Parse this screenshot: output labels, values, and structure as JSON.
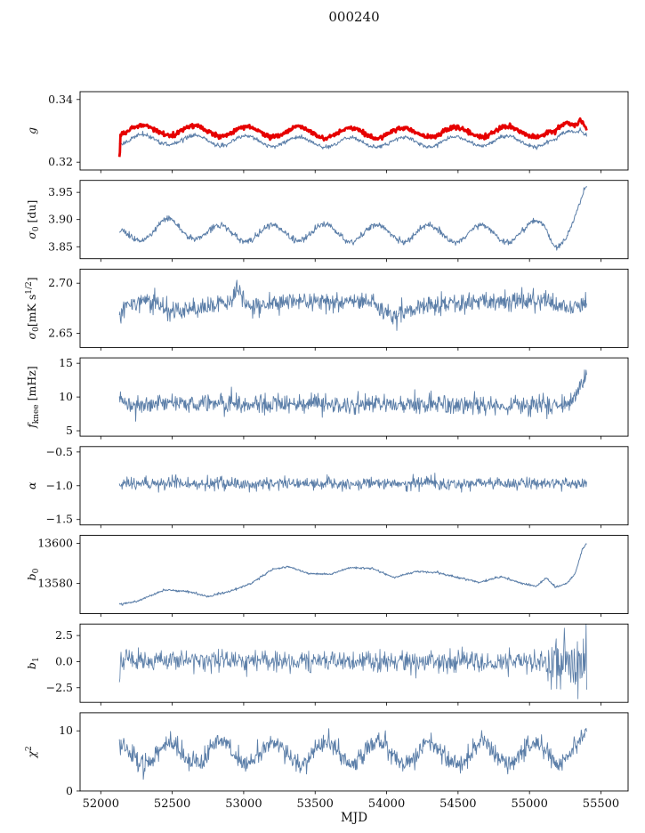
{
  "title": "000240",
  "xlabel": "MJD",
  "colors": {
    "line": "#5b7ea8",
    "red": "#e60000",
    "axis": "#000000",
    "text": "#111111"
  },
  "x_axis": {
    "min": 51855,
    "max": 55690,
    "data_range": [
      52130,
      55400
    ],
    "ticks": [
      {
        "v": 52000,
        "label": "52000"
      },
      {
        "v": 52500,
        "label": "52500"
      },
      {
        "v": 53000,
        "label": "53000"
      },
      {
        "v": 53500,
        "label": "53500"
      },
      {
        "v": 54000,
        "label": "54000"
      },
      {
        "v": 54500,
        "label": "54500"
      },
      {
        "v": 55000,
        "label": "55000"
      },
      {
        "v": 55500,
        "label": "55500"
      }
    ],
    "label": "MJD"
  },
  "chart_data": [
    {
      "type": "line",
      "name": "g",
      "ylabel_parts": [
        {
          "t": "g",
          "i": true
        }
      ],
      "ylim": [
        0.3175,
        0.3425
      ],
      "yticks": [
        {
          "v": 0.32,
          "label": "0.32"
        },
        {
          "v": 0.34,
          "label": "0.34"
        }
      ],
      "series": [
        {
          "name": "g-fit",
          "color_key": "line",
          "width": 1.0,
          "seed": 11,
          "noise": 0.00032,
          "seasonal": {
            "amp": 0.0016,
            "period": 365,
            "peak": 52290
          },
          "control": [
            [
              52130,
              0.3268
            ],
            [
              52300,
              0.3272
            ],
            [
              53000,
              0.3268
            ],
            [
              53800,
              0.3262
            ],
            [
              54500,
              0.3266
            ],
            [
              55000,
              0.3268
            ],
            [
              55120,
              0.3262
            ],
            [
              55180,
              0.3258
            ],
            [
              55260,
              0.3288
            ],
            [
              55320,
              0.33
            ],
            [
              55360,
              0.3318
            ],
            [
              55400,
              0.33
            ]
          ]
        },
        {
          "name": "g-measured",
          "color_key": "red",
          "width": 2.8,
          "seed": 7,
          "noise": 0.00035,
          "seasonal": {
            "amp": 0.0016,
            "period": 365,
            "peak": 52290
          },
          "control": [
            [
              52126,
              0.33
            ],
            [
              52131,
              0.3212
            ],
            [
              52137,
              0.3302
            ],
            [
              52300,
              0.3302
            ],
            [
              53000,
              0.3298
            ],
            [
              53800,
              0.3292
            ],
            [
              54500,
              0.3296
            ],
            [
              55000,
              0.3298
            ],
            [
              55120,
              0.329
            ],
            [
              55180,
              0.3286
            ],
            [
              55260,
              0.3316
            ],
            [
              55320,
              0.3322
            ],
            [
              55355,
              0.3348
            ],
            [
              55380,
              0.3338
            ],
            [
              55400,
              0.3318
            ]
          ]
        }
      ]
    },
    {
      "type": "line",
      "name": "sigma0_du",
      "ylabel_parts": [
        {
          "t": "σ",
          "i": true
        },
        {
          "t": "0",
          "sub": true
        },
        {
          "t": " [du]"
        }
      ],
      "ylim": [
        3.828,
        3.972
      ],
      "yticks": [
        {
          "v": 3.85,
          "label": "3.85"
        },
        {
          "v": 3.9,
          "label": "3.90"
        },
        {
          "v": 3.95,
          "label": "3.95"
        }
      ],
      "series": [
        {
          "name": "sigma0-du",
          "color_key": "line",
          "width": 1.0,
          "seed": 21,
          "noise": 0.0028,
          "seasonal": {
            "amp": 0.0155,
            "period": 365,
            "peak": 52470
          },
          "control": [
            [
              52130,
              3.868
            ],
            [
              52450,
              3.886
            ],
            [
              52800,
              3.874
            ],
            [
              53500,
              3.876
            ],
            [
              54300,
              3.874
            ],
            [
              54900,
              3.874
            ],
            [
              55100,
              3.886
            ],
            [
              55180,
              3.862
            ],
            [
              55260,
              3.876
            ],
            [
              55330,
              3.905
            ],
            [
              55400,
              3.948
            ]
          ]
        }
      ]
    },
    {
      "type": "line",
      "name": "sigma0_mks",
      "ylabel_parts": [
        {
          "t": "σ",
          "i": true
        },
        {
          "t": "0",
          "sub": true
        },
        {
          "t": "[mK s"
        },
        {
          "t": "1/2",
          "sup": true
        },
        {
          "t": "]"
        }
      ],
      "ylim": [
        2.636,
        2.714
      ],
      "yticks": [
        {
          "v": 2.65,
          "label": "2.65"
        },
        {
          "v": 2.7,
          "label": "2.70"
        }
      ],
      "series": [
        {
          "name": "sigma0-mks",
          "color_key": "line",
          "width": 0.9,
          "seed": 31,
          "noise": 0.0048,
          "control": [
            [
              52130,
              2.666
            ],
            [
              52180,
              2.678
            ],
            [
              52350,
              2.684
            ],
            [
              52480,
              2.672
            ],
            [
              52700,
              2.676
            ],
            [
              52900,
              2.68
            ],
            [
              52950,
              2.694
            ],
            [
              53050,
              2.676
            ],
            [
              53300,
              2.682
            ],
            [
              53600,
              2.682
            ],
            [
              53900,
              2.68
            ],
            [
              54050,
              2.668
            ],
            [
              54300,
              2.678
            ],
            [
              54600,
              2.682
            ],
            [
              54900,
              2.682
            ],
            [
              55100,
              2.684
            ],
            [
              55250,
              2.676
            ],
            [
              55400,
              2.678
            ]
          ]
        }
      ]
    },
    {
      "type": "line",
      "name": "fknee",
      "ylabel_parts": [
        {
          "t": "f",
          "i": true
        },
        {
          "t": "knee",
          "sub": true
        },
        {
          "t": " [mHz]"
        }
      ],
      "ylim": [
        4.2,
        15.8
      ],
      "yticks": [
        {
          "v": 5,
          "label": "5"
        },
        {
          "v": 10,
          "label": "10"
        },
        {
          "v": 15,
          "label": "15"
        }
      ],
      "series": [
        {
          "name": "fknee",
          "color_key": "line",
          "width": 0.9,
          "seed": 41,
          "noise": 0.72,
          "seasonal": {
            "amp": 0.15,
            "period": 365,
            "peak": 52470
          },
          "control": [
            [
              52130,
              9.1
            ],
            [
              53000,
              9.0
            ],
            [
              54000,
              8.9
            ],
            [
              55200,
              8.8
            ],
            [
              55300,
              9.3
            ],
            [
              55360,
              11.5
            ],
            [
              55400,
              13.2
            ]
          ]
        }
      ]
    },
    {
      "type": "line",
      "name": "alpha",
      "ylabel_parts": [
        {
          "t": "α",
          "i": true
        }
      ],
      "ylim": [
        -1.58,
        -0.42
      ],
      "yticks": [
        {
          "v": -1.5,
          "label": "−1.5"
        },
        {
          "v": -1.0,
          "label": "−1.0"
        },
        {
          "v": -0.5,
          "label": "−0.5"
        }
      ],
      "series": [
        {
          "name": "alpha",
          "color_key": "line",
          "width": 0.9,
          "seed": 51,
          "noise": 0.045,
          "seasonal": {
            "amp": 0.008,
            "period": 365,
            "peak": 52470
          },
          "control": [
            [
              52130,
              -0.968
            ],
            [
              55400,
              -0.968
            ]
          ]
        }
      ]
    },
    {
      "type": "line",
      "name": "b0",
      "ylabel_parts": [
        {
          "t": "b",
          "i": true
        },
        {
          "t": "0",
          "sub": true
        }
      ],
      "ylim": [
        13565,
        13604
      ],
      "yticks": [
        {
          "v": 13580,
          "label": "13580"
        },
        {
          "v": 13600,
          "label": "13600"
        }
      ],
      "series": [
        {
          "name": "b0",
          "color_key": "line",
          "width": 1.0,
          "seed": 61,
          "noise": 0.28,
          "control": [
            [
              52130,
              13569.5
            ],
            [
              52250,
              13571
            ],
            [
              52450,
              13577
            ],
            [
              52600,
              13576
            ],
            [
              52750,
              13573.5
            ],
            [
              52900,
              13576
            ],
            [
              53050,
              13580
            ],
            [
              53200,
              13587
            ],
            [
              53320,
              13588.5
            ],
            [
              53450,
              13585
            ],
            [
              53600,
              13584.5
            ],
            [
              53750,
              13588
            ],
            [
              53900,
              13587.5
            ],
            [
              54050,
              13583
            ],
            [
              54200,
              13586
            ],
            [
              54350,
              13585.5
            ],
            [
              54500,
              13583
            ],
            [
              54650,
              13580.5
            ],
            [
              54800,
              13583.5
            ],
            [
              54950,
              13580
            ],
            [
              55050,
              13578.5
            ],
            [
              55120,
              13583
            ],
            [
              55180,
              13578
            ],
            [
              55260,
              13580
            ],
            [
              55320,
              13585
            ],
            [
              55370,
              13597
            ],
            [
              55400,
              13600
            ]
          ]
        }
      ]
    },
    {
      "type": "line",
      "name": "b1",
      "ylabel_parts": [
        {
          "t": "b",
          "i": true
        },
        {
          "t": "1",
          "sub": true
        }
      ],
      "ylim": [
        -3.9,
        3.6
      ],
      "yticks": [
        {
          "v": -2.5,
          "label": "−2.5"
        },
        {
          "v": 0,
          "label": "0.0"
        },
        {
          "v": 2.5,
          "label": "2.5"
        }
      ],
      "series": [
        {
          "name": "b1",
          "color_key": "line",
          "width": 0.8,
          "seed": 71,
          "noise": 0.5,
          "end_noise": {
            "from": 55120,
            "factor": 2.6
          },
          "control": [
            [
              52127,
              -2.9
            ],
            [
              52140,
              0.1
            ],
            [
              55400,
              0
            ]
          ]
        }
      ]
    },
    {
      "type": "line",
      "name": "chi2",
      "ylabel_parts": [
        {
          "t": "χ",
          "i": true
        },
        {
          "t": "2",
          "sup": true
        }
      ],
      "ylim": [
        0,
        13
      ],
      "yticks": [
        {
          "v": 0,
          "label": "0"
        },
        {
          "v": 10,
          "label": "10"
        }
      ],
      "series": [
        {
          "name": "chi2",
          "color_key": "line",
          "width": 0.9,
          "seed": 81,
          "noise": 0.85,
          "seasonal": {
            "amp": 1.7,
            "period": 365,
            "peak": 52480
          },
          "clamp": [
            0.8,
            12.6
          ],
          "control": [
            [
              52130,
              6.2
            ],
            [
              53000,
              6.4
            ],
            [
              54000,
              6.3
            ],
            [
              55250,
              6.3
            ],
            [
              55350,
              7.3
            ],
            [
              55400,
              7.0
            ]
          ]
        }
      ]
    }
  ]
}
